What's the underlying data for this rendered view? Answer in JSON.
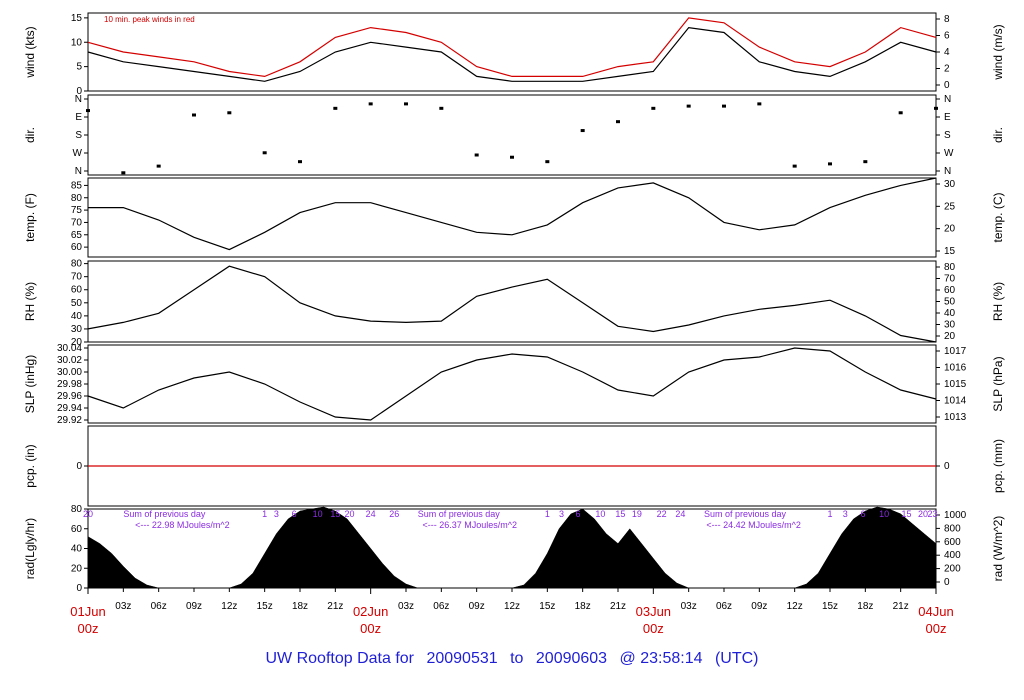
{
  "chart_data": {
    "type": "line",
    "title": "UW Rooftop Data for 20090531 to 20090603 @ 23:58:14 (UTC)",
    "panels": [
      {
        "id": "wind",
        "type": "line",
        "ylabel_left": "wind (kts)",
        "ylabel_right": "wind (m/s)",
        "left_ticks": [
          "0",
          "5",
          "10",
          "15"
        ],
        "right_ticks": [
          "0",
          "2",
          "4",
          "6",
          "8"
        ],
        "ylim": [
          0,
          16
        ],
        "note": "10 min. peak winds in red",
        "series": [
          {
            "name": "",
            "color": "#000000",
            "x": [
              0,
              3,
              6,
              9,
              12,
              15,
              18,
              21,
              24,
              27,
              30,
              33,
              36,
              39,
              42,
              45,
              48,
              51,
              54,
              57,
              60,
              63,
              66,
              69,
              72
            ],
            "values": [
              8,
              6,
              5,
              4,
              3,
              2,
              4,
              8,
              10,
              9,
              8,
              3,
              2,
              2,
              2,
              3,
              4,
              13,
              12,
              6,
              4,
              3,
              6,
              10,
              8
            ]
          },
          {
            "name": "",
            "color": "#d40000",
            "x": [
              0,
              3,
              6,
              9,
              12,
              15,
              18,
              21,
              24,
              27,
              30,
              33,
              36,
              39,
              42,
              45,
              48,
              51,
              54,
              57,
              60,
              63,
              66,
              69,
              72
            ],
            "values": [
              10,
              8,
              7,
              6,
              4,
              3,
              6,
              11,
              13,
              12,
              10,
              5,
              3,
              3,
              3,
              5,
              6,
              15,
              14,
              9,
              6,
              5,
              8,
              13,
              11
            ]
          }
        ]
      },
      {
        "id": "dir",
        "type": "scatter",
        "ylabel_left": "dir.",
        "ylabel_right": "dir.",
        "left_ticks": [
          "N",
          "W",
          "S",
          "E",
          "N"
        ],
        "right_ticks": [
          "N",
          "W",
          "S",
          "E",
          "N"
        ],
        "ylim": [
          0,
          360
        ],
        "series": [
          {
            "name": "",
            "color": "#000000",
            "x": [
              0,
              3,
              6,
              9,
              12,
              15,
              18,
              21,
              24,
              27,
              30,
              33,
              36,
              39,
              42,
              45,
              48,
              51,
              54,
              57,
              60,
              63,
              66,
              69,
              72
            ],
            "values": [
              290,
              10,
              40,
              270,
              280,
              100,
              60,
              300,
              320,
              320,
              300,
              90,
              80,
              60,
              200,
              240,
              300,
              310,
              310,
              320,
              40,
              50,
              60,
              280,
              300
            ]
          }
        ]
      },
      {
        "id": "temp",
        "type": "line",
        "ylabel_left": "temp. (F)",
        "ylabel_right": "temp. (C)",
        "left_ticks": [
          "60",
          "65",
          "70",
          "75",
          "80",
          "85"
        ],
        "right_ticks": [
          "15",
          "20",
          "25",
          "30"
        ],
        "ylim": [
          56,
          88
        ],
        "series": [
          {
            "name": "",
            "color": "#000000",
            "x": [
              0,
              3,
              6,
              9,
              12,
              15,
              18,
              21,
              24,
              27,
              30,
              33,
              36,
              39,
              42,
              45,
              48,
              51,
              54,
              57,
              60,
              63,
              66,
              69,
              72
            ],
            "values": [
              76,
              76,
              71,
              64,
              59,
              66,
              74,
              78,
              78,
              74,
              70,
              66,
              65,
              69,
              78,
              84,
              86,
              80,
              70,
              67,
              69,
              76,
              81,
              85,
              88
            ]
          }
        ]
      },
      {
        "id": "rh",
        "type": "line",
        "ylabel_left": "RH (%)",
        "ylabel_right": "RH (%)",
        "left_ticks": [
          "20",
          "30",
          "40",
          "50",
          "60",
          "70",
          "80"
        ],
        "right_ticks": [
          "20",
          "30",
          "40",
          "50",
          "60",
          "70",
          "80"
        ],
        "ylim": [
          20,
          82
        ],
        "series": [
          {
            "name": "",
            "color": "#000000",
            "x": [
              0,
              3,
              6,
              9,
              12,
              15,
              18,
              21,
              24,
              27,
              30,
              33,
              36,
              39,
              42,
              45,
              48,
              51,
              54,
              57,
              60,
              63,
              66,
              69,
              72
            ],
            "values": [
              30,
              35,
              42,
              60,
              78,
              70,
              50,
              40,
              36,
              35,
              36,
              55,
              62,
              68,
              50,
              32,
              28,
              33,
              40,
              45,
              48,
              52,
              40,
              25,
              20
            ]
          }
        ]
      },
      {
        "id": "slp",
        "type": "line",
        "ylabel_left": "SLP (inHg)",
        "ylabel_right": "SLP (hPa)",
        "left_ticks": [
          "29.92",
          "29.94",
          "29.96",
          "29.98",
          "30.00",
          "30.02",
          "30.04"
        ],
        "right_ticks": [
          "1013",
          "1014",
          "1015",
          "1016",
          "1017"
        ],
        "ylim": [
          29.915,
          30.045
        ],
        "series": [
          {
            "name": "",
            "color": "#000000",
            "x": [
              0,
              3,
              6,
              9,
              12,
              15,
              18,
              21,
              24,
              27,
              30,
              33,
              36,
              39,
              42,
              45,
              48,
              51,
              54,
              57,
              60,
              63,
              66,
              69,
              72
            ],
            "values": [
              29.96,
              29.94,
              29.97,
              29.99,
              30.0,
              29.98,
              29.95,
              29.925,
              29.92,
              29.96,
              30.0,
              30.02,
              30.03,
              30.025,
              30.0,
              29.97,
              29.96,
              30.0,
              30.02,
              30.025,
              30.04,
              30.035,
              30.0,
              29.97,
              29.955
            ]
          }
        ]
      },
      {
        "id": "pcp",
        "type": "line",
        "ylabel_left": "pcp. (in)",
        "ylabel_right": "pcp. (mm)",
        "left_ticks": [
          "0"
        ],
        "right_ticks": [
          "0"
        ],
        "ylim": [
          -1,
          1
        ],
        "series": [
          {
            "name": "",
            "color": "#d40000",
            "x": [
              0,
              72
            ],
            "values": [
              0,
              0
            ]
          }
        ]
      },
      {
        "id": "rad",
        "type": "area",
        "ylabel_left": "rad(Lgly/hr)",
        "ylabel_right": "rad (W/m^2)",
        "left_ticks": [
          "0",
          "20",
          "40",
          "60",
          "80"
        ],
        "right_ticks": [
          "0",
          "200",
          "400",
          "600",
          "800",
          "1000"
        ],
        "ylim": [
          0,
          80
        ],
        "series": [
          {
            "name": "",
            "color": "#000000",
            "x": [
              0,
              1,
              2,
              3,
              4,
              5,
              6,
              12,
              13,
              14,
              15,
              16,
              17,
              18,
              19,
              20,
              21,
              22,
              23,
              24,
              25,
              26,
              27,
              28,
              29,
              30,
              36,
              37,
              38,
              39,
              40,
              41,
              42,
              43,
              44,
              45,
              46,
              47,
              48,
              49,
              50,
              51,
              52,
              53,
              54,
              60,
              61,
              62,
              63,
              64,
              65,
              66,
              67,
              68,
              69,
              70,
              71,
              72
            ],
            "values": [
              52,
              45,
              35,
              22,
              10,
              3,
              0,
              0,
              4,
              15,
              35,
              55,
              70,
              78,
              80,
              82,
              78,
              70,
              55,
              40,
              25,
              12,
              4,
              0,
              0,
              0,
              0,
              3,
              15,
              35,
              60,
              75,
              80,
              70,
              55,
              45,
              60,
              45,
              30,
              15,
              5,
              0,
              0,
              0,
              0,
              0,
              4,
              15,
              35,
              55,
              70,
              78,
              82,
              80,
              75,
              65,
              55,
              45
            ]
          }
        ],
        "annotations": [
          {
            "text": "20",
            "hour": 0
          },
          {
            "text": "Sum of previous day",
            "hour": 3
          },
          {
            "text": "<--- 22.98 MJoules/m^2",
            "hour": 4
          },
          {
            "text": "1",
            "hour": 15
          },
          {
            "text": "3",
            "hour": 16
          },
          {
            "text": "6",
            "hour": 17.5
          },
          {
            "text": "10",
            "hour": 19.5
          },
          {
            "text": "15",
            "hour": 21
          },
          {
            "text": "20",
            "hour": 22.2
          },
          {
            "text": "24",
            "hour": 24
          },
          {
            "text": "26",
            "hour": 26
          },
          {
            "text": "Sum of previous day",
            "hour": 28
          },
          {
            "text": "<--- 26.37 MJoules/m^2",
            "hour": 28.4
          },
          {
            "text": "1",
            "hour": 39
          },
          {
            "text": "3",
            "hour": 40.2
          },
          {
            "text": "6",
            "hour": 41.6
          },
          {
            "text": "10",
            "hour": 43.5
          },
          {
            "text": "15",
            "hour": 45.2
          },
          {
            "text": "19",
            "hour": 46.6
          },
          {
            "text": "22",
            "hour": 48.7
          },
          {
            "text": "24",
            "hour": 50.3
          },
          {
            "text": "Sum of previous day",
            "hour": 52.3
          },
          {
            "text": "<--- 24.42 MJoules/m^2",
            "hour": 52.5
          },
          {
            "text": "1",
            "hour": 63
          },
          {
            "text": "3",
            "hour": 64.3
          },
          {
            "text": "6",
            "hour": 65.8
          },
          {
            "text": "10",
            "hour": 67.6
          },
          {
            "text": "15",
            "hour": 69.5
          },
          {
            "text": "20",
            "hour": 70.9
          },
          {
            "text": "23",
            "hour": 71.7
          }
        ]
      }
    ],
    "x_axis": {
      "hour_ticks": [
        {
          "hour": 3,
          "label": "03z"
        },
        {
          "hour": 6,
          "label": "06z"
        },
        {
          "hour": 9,
          "label": "09z"
        },
        {
          "hour": 12,
          "label": "12z"
        },
        {
          "hour": 15,
          "label": "15z"
        },
        {
          "hour": 18,
          "label": "18z"
        },
        {
          "hour": 21,
          "label": "21z"
        },
        {
          "hour": 27,
          "label": "03z"
        },
        {
          "hour": 30,
          "label": "06z"
        },
        {
          "hour": 33,
          "label": "09z"
        },
        {
          "hour": 36,
          "label": "12z"
        },
        {
          "hour": 39,
          "label": "15z"
        },
        {
          "hour": 42,
          "label": "18z"
        },
        {
          "hour": 45,
          "label": "21z"
        },
        {
          "hour": 51,
          "label": "03z"
        },
        {
          "hour": 54,
          "label": "06z"
        },
        {
          "hour": 57,
          "label": "09z"
        },
        {
          "hour": 60,
          "label": "12z"
        },
        {
          "hour": 63,
          "label": "15z"
        },
        {
          "hour": 66,
          "label": "18z"
        },
        {
          "hour": 69,
          "label": "21z"
        }
      ],
      "day_labels": [
        {
          "hour": 0,
          "date": "01Jun",
          "time": "00z"
        },
        {
          "hour": 24,
          "date": "02Jun",
          "time": "00z"
        },
        {
          "hour": 48,
          "date": "03Jun",
          "time": "00z"
        },
        {
          "hour": 72,
          "date": "04Jun",
          "time": "00z"
        }
      ]
    }
  },
  "footer": {
    "prefix": "UW Rooftop Data for",
    "start": "20090531",
    "sep": "to",
    "end": "20090603",
    "at": "@ 23:58:14",
    "tz": "(UTC)"
  },
  "colors": {
    "accent_red": "#d40000",
    "footer_blue": "#1f1fd6",
    "purple": "#8a2be2"
  }
}
